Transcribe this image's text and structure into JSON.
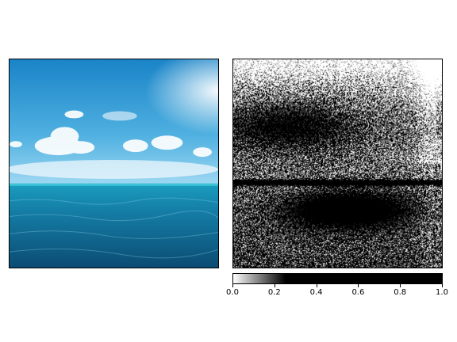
{
  "chart_data": {
    "type": "heatmap",
    "panels": [
      {
        "name": "input-image",
        "description_visible": "ocean photo with sky and clouds"
      },
      {
        "name": "attribution-map",
        "colormap": "gray_r"
      }
    ],
    "colorbar": {
      "orientation": "horizontal",
      "vmin": 0.0,
      "vmax": 1.0,
      "ticks": [
        0.0,
        0.2,
        0.4,
        0.6,
        0.8,
        1.0
      ],
      "tick_labels": [
        "0.0",
        "0.2",
        "0.4",
        "0.6",
        "0.8",
        "1.0"
      ],
      "colormap": [
        {
          "value": 0.0,
          "color": "#ffffff"
        },
        {
          "value": 0.25,
          "color": "#000000"
        },
        {
          "value": 1.0,
          "color": "#000000"
        }
      ]
    }
  }
}
